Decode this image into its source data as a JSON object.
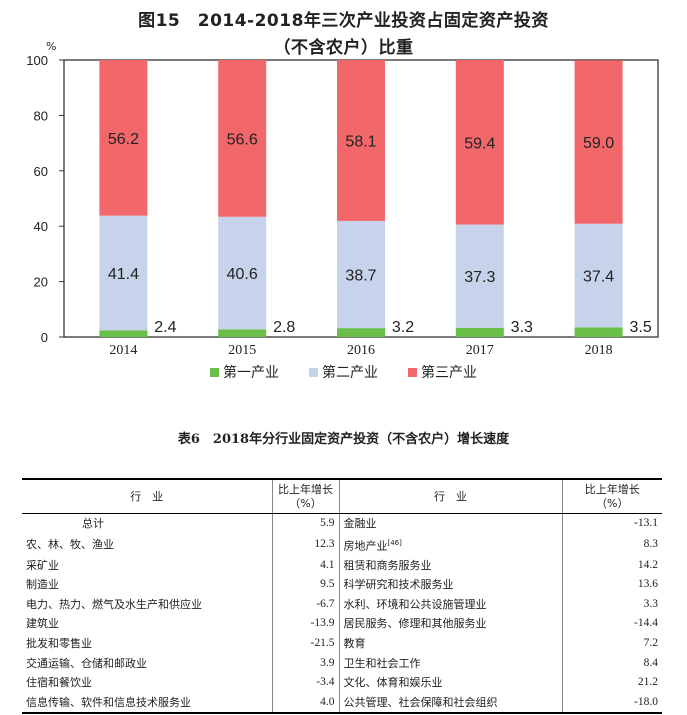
{
  "chart_title_line1": "图15　2014-2018年三次产业投资占固定资产投资",
  "chart_title_line2": "（不含农户）比重",
  "chart_data": {
    "type": "bar",
    "stacked": true,
    "categories": [
      "2014",
      "2015",
      "2016",
      "2017",
      "2018"
    ],
    "series": [
      {
        "name": "第一产业",
        "color": "#6abf4b",
        "values": [
          2.4,
          2.8,
          3.2,
          3.3,
          3.5
        ]
      },
      {
        "name": "第二产业",
        "color": "#c6d3ea",
        "values": [
          41.4,
          40.6,
          38.7,
          37.3,
          37.4
        ]
      },
      {
        "name": "第三产业",
        "color": "#f2686a",
        "values": [
          56.2,
          56.6,
          58.1,
          59.4,
          59.0
        ]
      }
    ],
    "ylabel": "%",
    "ylim": [
      0,
      100
    ],
    "yticks": [
      "0",
      "20",
      "40",
      "60",
      "80",
      "100"
    ],
    "legend": "bottom",
    "grid": false
  },
  "table": {
    "title": "表6　2018年分行业固定资产投资（不含农户）增长速度",
    "header_industry": "行　业",
    "header_growth_line1": "比上年增长",
    "header_growth_line2": "（%）",
    "rows": [
      {
        "left": "总计",
        "left_val": "5.9",
        "right": "金融业",
        "right_val": "-13.1"
      },
      {
        "left": "农、林、牧、渔业",
        "left_val": "12.3",
        "right": "房地产业",
        "right_sup": "[46]",
        "right_val": "8.3"
      },
      {
        "left": "采矿业",
        "left_val": "4.1",
        "right": "租赁和商务服务业",
        "right_val": "14.2"
      },
      {
        "left": "制造业",
        "left_val": "9.5",
        "right": "科学研究和技术服务业",
        "right_val": "13.6"
      },
      {
        "left": "电力、热力、燃气及水生产和供应业",
        "left_val": "-6.7",
        "right": "水利、环境和公共设施管理业",
        "right_val": "3.3"
      },
      {
        "left": "建筑业",
        "left_val": "-13.9",
        "right": "居民服务、修理和其他服务业",
        "right_val": "-14.4"
      },
      {
        "left": "批发和零售业",
        "left_val": "-21.5",
        "right": "教育",
        "right_val": "7.2"
      },
      {
        "left": "交通运输、仓储和邮政业",
        "left_val": "3.9",
        "right": "卫生和社会工作",
        "right_val": "8.4"
      },
      {
        "left": "住宿和餐饮业",
        "left_val": "-3.4",
        "right": "文化、体育和娱乐业",
        "right_val": "21.2"
      },
      {
        "left": "信息传输、软件和信息技术服务业",
        "left_val": "4.0",
        "right": "公共管理、社会保障和社会组织",
        "right_val": "-18.0"
      }
    ]
  }
}
